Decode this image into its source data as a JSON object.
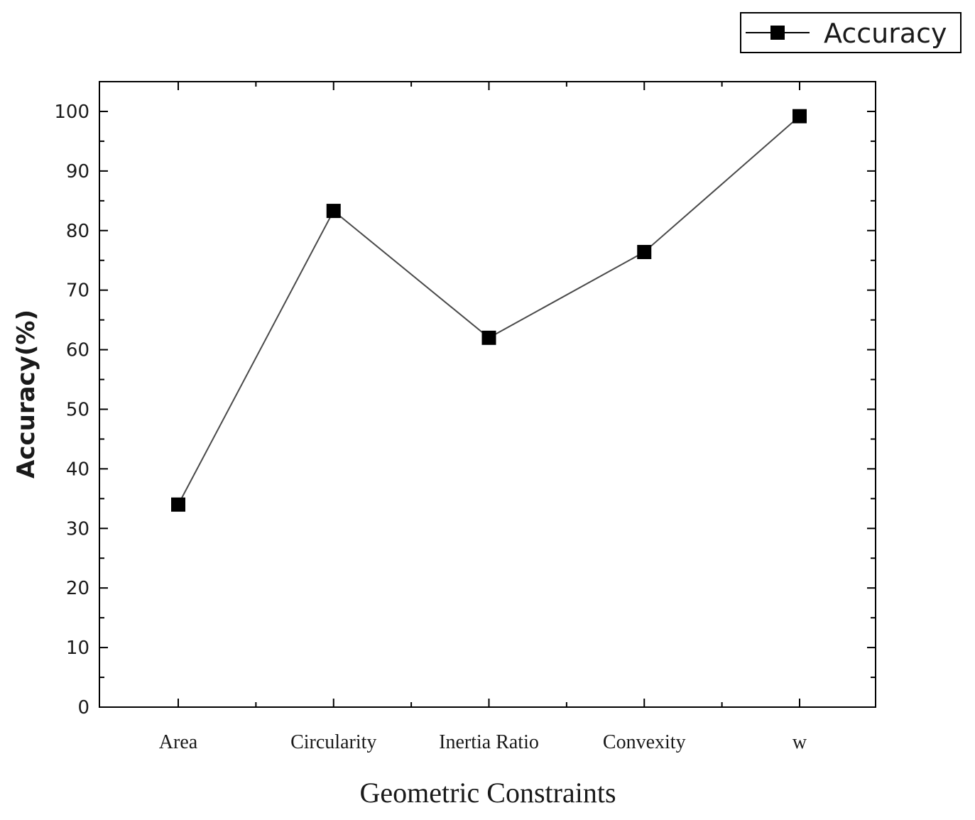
{
  "chart_data": {
    "type": "line",
    "categories": [
      "Area",
      "Circularity",
      "Inertia Ratio",
      "Convexity",
      "w"
    ],
    "series": [
      {
        "name": "Accuracy",
        "values": [
          34,
          83.3,
          62,
          76.4,
          99.2
        ],
        "color": "#000000",
        "marker": "square"
      }
    ],
    "xlabel": "Geometric Constraints",
    "ylabel": "Accuracy(%)",
    "ylim": [
      0,
      105
    ],
    "yticks": [
      "0",
      "10",
      "20",
      "30",
      "40",
      "50",
      "60",
      "70",
      "80",
      "90",
      "100"
    ],
    "grid": false,
    "legend_position": "top-right"
  }
}
